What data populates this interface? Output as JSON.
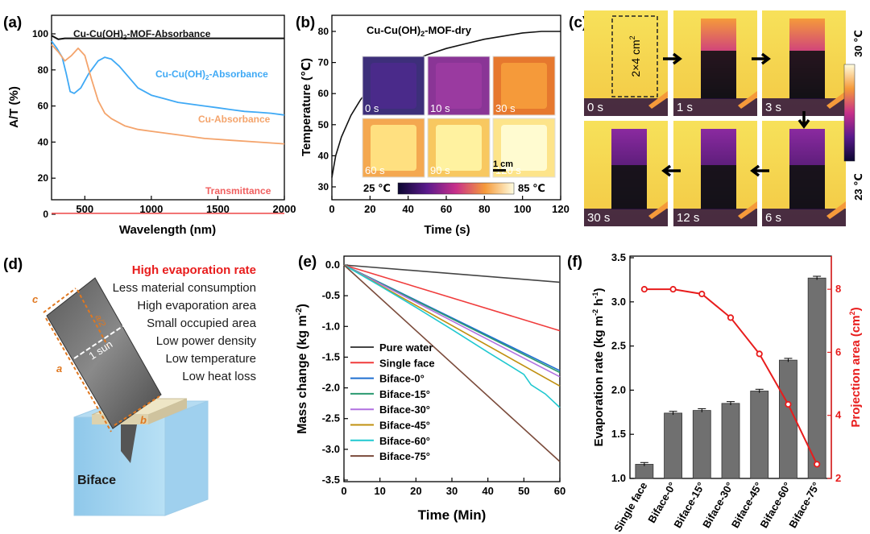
{
  "panels": {
    "a": {
      "label": "(a)",
      "chart_data": {
        "type": "line",
        "xlabel": "Wavelength (nm)",
        "ylabel": "A/T (%)",
        "xlim": [
          250,
          2000
        ],
        "ylim": [
          0,
          100
        ],
        "xticks": [
          "500",
          "1000",
          "1500",
          "2000"
        ],
        "yticks": [
          "0",
          "20",
          "40",
          "60",
          "80",
          "100"
        ],
        "series": [
          {
            "name": "Cu-Cu(OH)2-MOF-Absorbance",
            "label_main": "Cu-Cu(OH)",
            "label_sub": "2",
            "label_tail": "-MOF-Absorbance",
            "color": "#111111",
            "x": [
              250,
              300,
              350,
              400,
              500,
              700,
              900,
              1100,
              1300,
              1500,
              1700,
              1900,
              2000
            ],
            "y": [
              99,
              97,
              97.5,
              97.5,
              97.5,
              97.5,
              97.5,
              97.5,
              97.5,
              97.5,
              97.5,
              97.5,
              97.5
            ]
          },
          {
            "name": "Cu-Cu(OH)2-Absorbance",
            "label_main": "Cu-Cu(OH)",
            "label_sub": "2",
            "label_tail": "-Absorbance",
            "color": "#3fa9f5",
            "x": [
              250,
              290,
              330,
              360,
              390,
              420,
              470,
              530,
              600,
              650,
              700,
              760,
              830,
              900,
              1000,
              1100,
              1200,
              1300,
              1400,
              1500,
              1600,
              1700,
              1800,
              1900,
              2000
            ],
            "y": [
              96,
              92,
              87,
              78,
              68,
              67,
              70,
              78,
              85,
              87,
              86,
              82,
              76,
              70,
              66,
              64,
              62,
              61,
              60,
              59,
              58,
              57,
              56.5,
              56,
              55
            ]
          },
          {
            "name": "Cu-Absorbance",
            "label_main": "Cu-Absorbance",
            "label_sub": "",
            "label_tail": "",
            "color": "#f4a46c",
            "x": [
              250,
              300,
              350,
              400,
              450,
              500,
              550,
              600,
              650,
              700,
              800,
              900,
              1000,
              1200,
              1400,
              1600,
              1800,
              2000
            ],
            "y": [
              94,
              90,
              85,
              88,
              92,
              88,
              75,
              63,
              56,
              53,
              49,
              47,
              46,
              44,
              42,
              41,
              40,
              39
            ]
          },
          {
            "name": "Transmittance",
            "label_main": "Transmittance",
            "label_sub": "",
            "label_tail": "",
            "color": "#f06060",
            "x": [
              250,
              2000
            ],
            "y": [
              0.5,
              0.5
            ]
          }
        ]
      }
    },
    "b": {
      "label": "(b)",
      "title": "Cu-Cu(OH)2-MOF-dry",
      "title_main": "Cu-Cu(OH)",
      "title_sub": "2",
      "title_tail": "-MOF-dry",
      "chart_data": {
        "type": "line",
        "xlabel": "Time (s)",
        "ylabel": "Temperature (℃)",
        "xlim": [
          0,
          120
        ],
        "ylim": [
          30,
          80
        ],
        "xticks": [
          "0",
          "20",
          "40",
          "60",
          "80",
          "100",
          "120"
        ],
        "yticks": [
          "30",
          "40",
          "50",
          "60",
          "70",
          "80"
        ],
        "series": [
          {
            "name": "temperature",
            "color": "#111111",
            "x": [
              0,
              2,
              5,
              10,
              15,
              20,
              30,
              40,
              50,
              60,
              70,
              80,
              90,
              100,
              110,
              120
            ],
            "y": [
              33,
              40,
              46,
              53,
              58,
              62,
              67,
              70,
              72.5,
              74.5,
              76,
              77.5,
              78.5,
              79.5,
              80,
              80
            ]
          }
        ]
      },
      "thermal_times": [
        "0 s",
        "10 s",
        "30 s",
        "60 s",
        "90 s",
        "120 s"
      ],
      "thermal_colors": [
        [
          "#4a2a8a",
          "#3d2f7a"
        ],
        [
          "#9a3aa0",
          "#8a3596"
        ],
        [
          "#f59a3a",
          "#e6782e"
        ],
        [
          "#ffe080",
          "#f4a850"
        ],
        [
          "#fff2a0",
          "#f8c860"
        ],
        [
          "#fffbd0",
          "#fde48a"
        ]
      ],
      "scale_label": "1 cm",
      "colorbar_min": "25 ℃",
      "colorbar_max": "85 ℃"
    },
    "c": {
      "label": "(c)",
      "area_label": "2×4 cm",
      "area_sup": "2",
      "frames": [
        "0 s",
        "1 s",
        "3 s",
        "6 s",
        "12 s",
        "30 s"
      ],
      "colorbar_max": "30 ℃",
      "colorbar_min": "23 ℃"
    },
    "d": {
      "label": "(d)",
      "features": [
        "High evaporation rate",
        "Less material consumption",
        "High evaporation area",
        "Small occupied area",
        "Low power density",
        "Low temperature",
        "Low heat loss"
      ],
      "sun_label": "1 sun",
      "dims": {
        "a": "a",
        "b": "b",
        "c": "c",
        "a_half": "a/2"
      },
      "device_label": "Biface"
    },
    "e": {
      "label": "(e)",
      "chart_data": {
        "type": "line",
        "xlabel": "Time (Min)",
        "ylabel": "Mass change (kg m⁻²)",
        "ylabel_main": "Mass change (kg m",
        "ylabel_sup": "-2",
        "ylabel_tail": ")",
        "xlim": [
          0,
          60
        ],
        "ylim": [
          -3.5,
          0.1
        ],
        "xticks": [
          "0",
          "10",
          "20",
          "30",
          "40",
          "50",
          "60"
        ],
        "yticks": [
          "0.0",
          "-0.5",
          "-1.0",
          "-1.5",
          "-2.0",
          "-2.5",
          "-3.0",
          "-3.5"
        ],
        "series": [
          {
            "name": "Pure water",
            "color": "#444444",
            "x": [
              0,
              60
            ],
            "y": [
              0,
              -0.28
            ]
          },
          {
            "name": "Single face",
            "color": "#f03c3c",
            "x": [
              0,
              60
            ],
            "y": [
              0,
              -1.07
            ]
          },
          {
            "name": "Biface-0°",
            "color": "#1f6fd0",
            "x": [
              0,
              60
            ],
            "y": [
              0,
              -1.72
            ]
          },
          {
            "name": "Biface-15°",
            "color": "#2a9a70",
            "x": [
              0,
              60
            ],
            "y": [
              0,
              -1.75
            ]
          },
          {
            "name": "Biface-30°",
            "color": "#b070e0",
            "x": [
              0,
              60
            ],
            "y": [
              0,
              -1.82
            ]
          },
          {
            "name": "Biface-45°",
            "color": "#c09010",
            "x": [
              0,
              60
            ],
            "y": [
              0,
              -1.97
            ]
          },
          {
            "name": "Biface-60°",
            "color": "#20c8d0",
            "x": [
              0,
              10,
              20,
              30,
              40,
              50,
              52,
              56,
              60
            ],
            "y": [
              0,
              -0.34,
              -0.69,
              -1.05,
              -1.42,
              -1.78,
              -1.95,
              -2.1,
              -2.32
            ]
          },
          {
            "name": "Biface-75°",
            "color": "#7a4a3a",
            "x": [
              0,
              60
            ],
            "y": [
              0,
              -3.2
            ]
          }
        ]
      }
    },
    "f": {
      "label": "(f)",
      "chart_data": {
        "type": "bar",
        "categories": [
          "Single face",
          "Biface-0°",
          "Biface-15°",
          "Biface-30°",
          "Biface-45°",
          "Biface-60°",
          "Biface-75°"
        ],
        "values": [
          1.16,
          1.74,
          1.77,
          1.85,
          1.99,
          2.34,
          3.27
        ],
        "errors": [
          0.02,
          0.02,
          0.02,
          0.02,
          0.02,
          0.02,
          0.02
        ],
        "projection_area": [
          8.0,
          8.0,
          7.85,
          7.1,
          5.95,
          4.35,
          2.45
        ],
        "ylabel": "Evaporation rate (kg m⁻² h⁻¹)",
        "ylabel_main": "Evaporation rate (kg m",
        "ylabel_sup1": "-2",
        "ylabel_mid": " h",
        "ylabel_sup2": "-1",
        "ylabel_tail": ")",
        "y2label": "Projection area (cm²)",
        "y2label_main": "Projection area (cm",
        "y2label_sup": "2",
        "y2label_tail": ")",
        "ylim": [
          1.0,
          3.5
        ],
        "y2lim": [
          2,
          9
        ],
        "yticks": [
          "1.0",
          "1.5",
          "2.0",
          "2.5",
          "3.0",
          "3.5"
        ],
        "y2ticks": [
          "2",
          "4",
          "6",
          "8"
        ],
        "bar_color": "#707070",
        "line_color": "#e81c1c"
      }
    }
  }
}
